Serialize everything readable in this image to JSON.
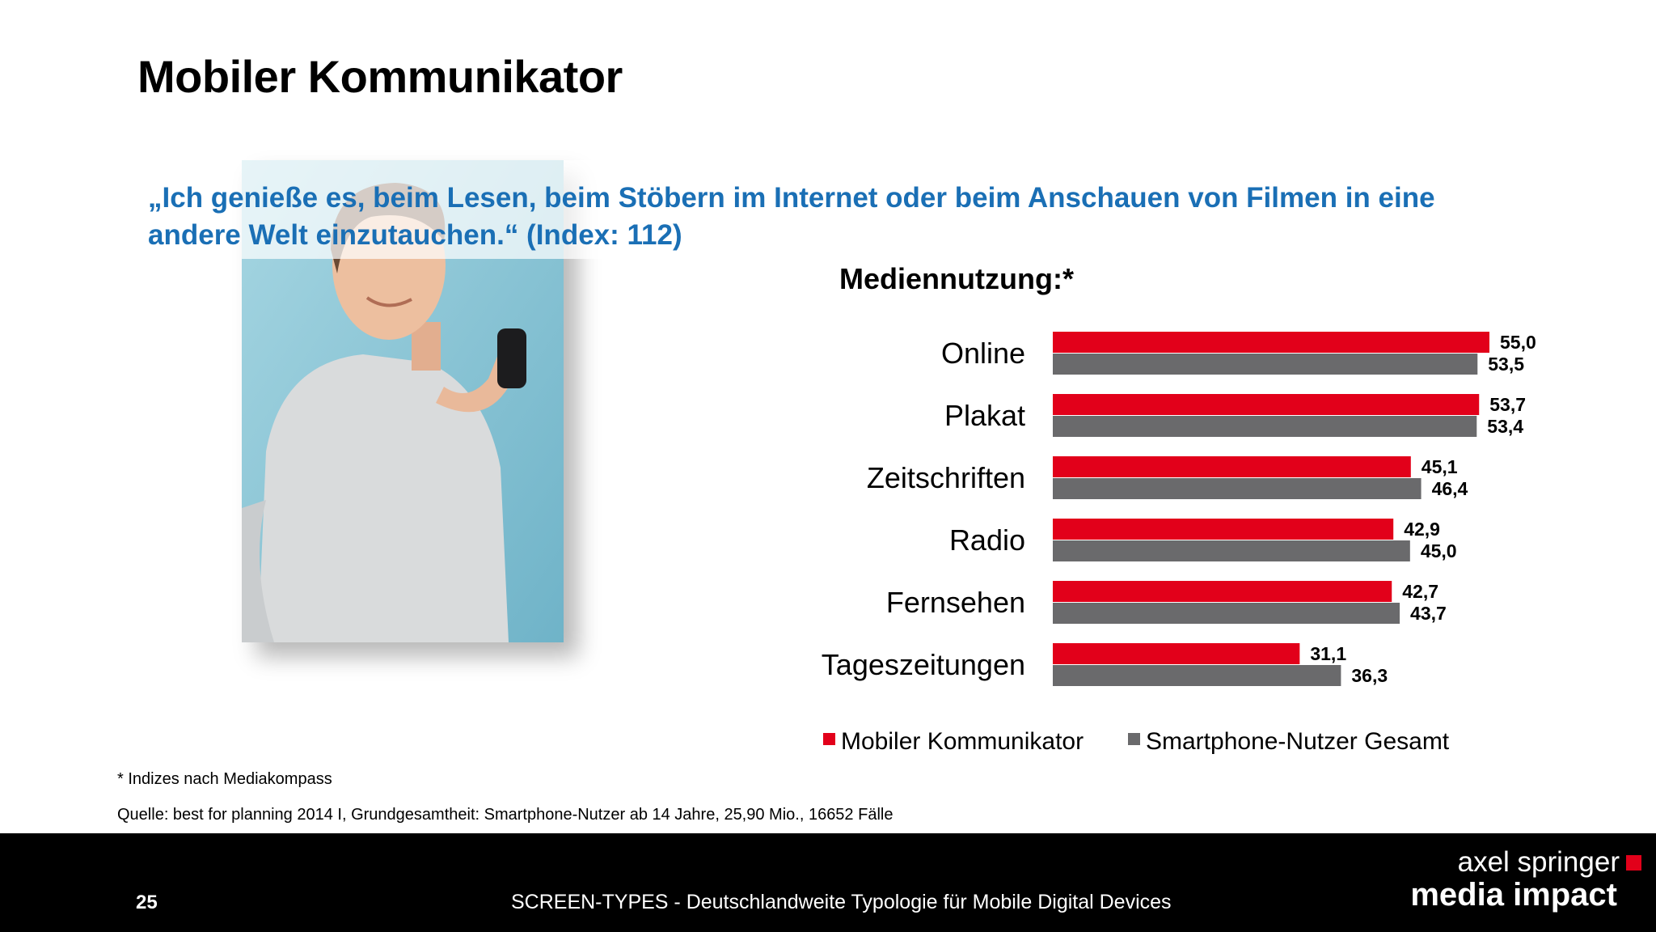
{
  "slide": {
    "title": "Mobiler Kommunikator",
    "quote": "„Ich genieße es, beim Lesen, beim Stöbern im Internet oder beim Anschauen von Filmen in eine andere Welt einzutauchen.“ (Index: 112)",
    "footnote": "* Indizes nach Mediakompass",
    "source": "Quelle: best for planning 2014 I, Grundgesamtheit: Smartphone-Nutzer ab 14 Jahre, 25,90 Mio., 16652 Fälle",
    "page_number": "25",
    "footer_text": "SCREEN-TYPES - Deutschlandweite Typologie für Mobile Digital Devices",
    "logo": {
      "line1": "axel springer",
      "line2": "media impact"
    }
  },
  "colors": {
    "series_red": "#e2001a",
    "series_grey": "#6a6a6c",
    "quote_blue": "#1a6fb5"
  },
  "chart_data": {
    "type": "bar",
    "orientation": "horizontal",
    "title": "Mediennutzung:*",
    "categories": [
      "Online",
      "Plakat",
      "Zeitschriften",
      "Radio",
      "Fernsehen",
      "Tageszeitungen"
    ],
    "series": [
      {
        "name": "Mobiler Kommunikator",
        "color": "#e2001a",
        "values": [
          55.0,
          53.7,
          45.1,
          42.9,
          42.7,
          31.1
        ],
        "labels": [
          "55,0",
          "53,7",
          "45,1",
          "42,9",
          "42,7",
          "31,1"
        ]
      },
      {
        "name": "Smartphone-Nutzer Gesamt",
        "color": "#6a6a6c",
        "values": [
          53.5,
          53.4,
          46.4,
          45.0,
          43.7,
          36.3
        ],
        "labels": [
          "53,5",
          "53,4",
          "46,4",
          "45,0",
          "43,7",
          "36,3"
        ]
      }
    ],
    "xlim": [
      0,
      55
    ],
    "grid": false,
    "legend": "bottom"
  }
}
